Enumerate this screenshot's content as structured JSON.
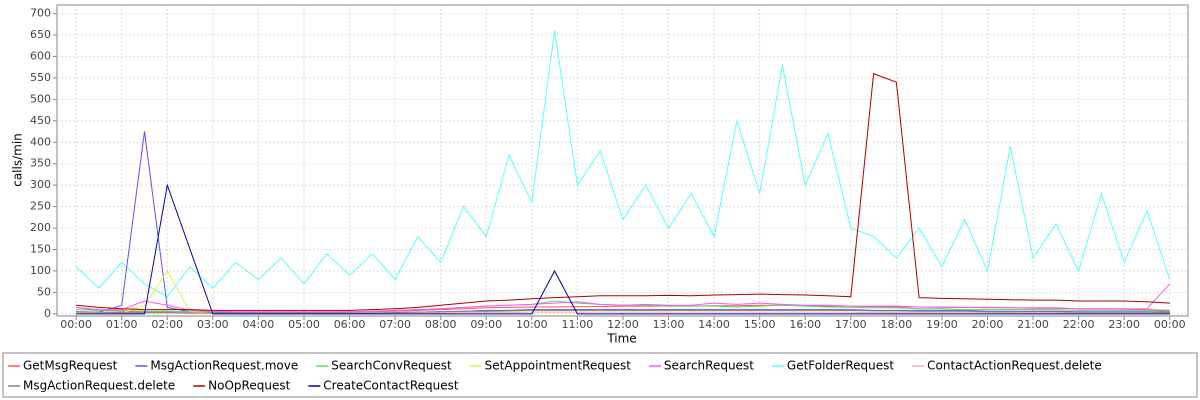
{
  "chart_data": {
    "type": "line",
    "y_label": "calls/min",
    "x_label": "Time",
    "grid": true,
    "legend": "bottom",
    "xlim": [
      -0.42,
      24.4
    ],
    "ylim": [
      -5,
      720
    ],
    "yticks": [
      0,
      50,
      100,
      150,
      200,
      250,
      300,
      350,
      400,
      450,
      500,
      550,
      600,
      650,
      700
    ],
    "xticks": [
      {
        "value": 0,
        "label": "00:00"
      },
      {
        "value": 1,
        "label": "01:00"
      },
      {
        "value": 2,
        "label": "02:00"
      },
      {
        "value": 3,
        "label": "03:00"
      },
      {
        "value": 4,
        "label": "04:00"
      },
      {
        "value": 5,
        "label": "05:00"
      },
      {
        "value": 6,
        "label": "06:00"
      },
      {
        "value": 7,
        "label": "07:00"
      },
      {
        "value": 8,
        "label": "08:00"
      },
      {
        "value": 9,
        "label": "09:00"
      },
      {
        "value": 10,
        "label": "10:00"
      },
      {
        "value": 11,
        "label": "11:00"
      },
      {
        "value": 12,
        "label": "12:00"
      },
      {
        "value": 13,
        "label": "13:00"
      },
      {
        "value": 14,
        "label": "14:00"
      },
      {
        "value": 15,
        "label": "15:00"
      },
      {
        "value": 16,
        "label": "16:00"
      },
      {
        "value": 17,
        "label": "17:00"
      },
      {
        "value": 18,
        "label": "18:00"
      },
      {
        "value": 19,
        "label": "19:00"
      },
      {
        "value": 20,
        "label": "20:00"
      },
      {
        "value": 21,
        "label": "21:00"
      },
      {
        "value": 22,
        "label": "22:00"
      },
      {
        "value": 23,
        "label": "23:00"
      },
      {
        "value": 24,
        "label": "00:00"
      }
    ],
    "x": [
      0,
      0.5,
      1,
      1.5,
      2,
      2.5,
      3,
      3.5,
      4,
      4.5,
      5,
      5.5,
      6,
      6.5,
      7,
      7.5,
      8,
      8.5,
      9,
      9.5,
      10,
      10.5,
      11,
      11.5,
      12,
      12.5,
      13,
      13.5,
      14,
      14.5,
      15,
      15.5,
      16,
      16.5,
      17,
      17.5,
      18,
      18.5,
      19,
      19.5,
      20,
      20.5,
      21,
      21.5,
      22,
      22.5,
      23,
      23.5,
      24
    ],
    "series": [
      {
        "name": "GetMsgRequest",
        "color": "#ff5555",
        "values": [
          15,
          8,
          6,
          5,
          5,
          5,
          4,
          4,
          4,
          4,
          4,
          4,
          5,
          5,
          6,
          8,
          10,
          12,
          14,
          15,
          16,
          16,
          17,
          17,
          18,
          18,
          18,
          18,
          19,
          19,
          20,
          20,
          19,
          18,
          18,
          17,
          16,
          16,
          15,
          15,
          14,
          14,
          13,
          13,
          12,
          12,
          11,
          10,
          8
        ]
      },
      {
        "name": "MsgActionRequest.move",
        "color": "#5555ff",
        "values": [
          5,
          4,
          20,
          425,
          15,
          5,
          3,
          3,
          2,
          2,
          2,
          2,
          2,
          2,
          3,
          4,
          5,
          6,
          8,
          8,
          10,
          10,
          10,
          10,
          10,
          10,
          10,
          10,
          10,
          10,
          10,
          10,
          10,
          10,
          10,
          8,
          8,
          8,
          8,
          8,
          6,
          6,
          6,
          6,
          5,
          5,
          5,
          5,
          4
        ]
      },
      {
        "name": "SearchConvRequest",
        "color": "#55dd55",
        "values": [
          10,
          8,
          8,
          6,
          6,
          5,
          5,
          5,
          5,
          5,
          5,
          5,
          5,
          6,
          8,
          10,
          12,
          15,
          18,
          20,
          22,
          30,
          25,
          22,
          20,
          20,
          18,
          18,
          18,
          16,
          18,
          20,
          18,
          16,
          15,
          14,
          14,
          12,
          12,
          10,
          10,
          10,
          10,
          10,
          8,
          8,
          8,
          8,
          6
        ]
      },
      {
        "name": "SetAppointmentRequest",
        "color": "#eeee44",
        "values": [
          2,
          2,
          2,
          20,
          100,
          5,
          2,
          1,
          1,
          1,
          1,
          1,
          1,
          1,
          2,
          2,
          3,
          3,
          4,
          4,
          4,
          4,
          4,
          4,
          4,
          4,
          4,
          4,
          4,
          4,
          4,
          4,
          4,
          4,
          4,
          3,
          3,
          3,
          3,
          3,
          3,
          2,
          2,
          2,
          2,
          2,
          2,
          2,
          2
        ]
      },
      {
        "name": "SearchRequest",
        "color": "#ff55ff",
        "values": [
          15,
          10,
          10,
          30,
          20,
          8,
          6,
          5,
          5,
          5,
          5,
          5,
          5,
          6,
          8,
          10,
          12,
          15,
          18,
          20,
          22,
          25,
          28,
          22,
          20,
          22,
          20,
          20,
          25,
          22,
          25,
          22,
          20,
          20,
          18,
          18,
          18,
          16,
          16,
          15,
          15,
          14,
          14,
          14,
          12,
          12,
          12,
          12,
          70
        ]
      },
      {
        "name": "GetFolderRequest",
        "color": "#55ffff",
        "values": [
          110,
          60,
          120,
          70,
          40,
          110,
          60,
          120,
          80,
          130,
          70,
          140,
          90,
          140,
          80,
          180,
          120,
          250,
          180,
          370,
          260,
          660,
          300,
          380,
          220,
          300,
          200,
          280,
          180,
          450,
          280,
          580,
          300,
          420,
          200,
          180,
          130,
          200,
          110,
          220,
          100,
          390,
          130,
          210,
          100,
          280,
          120,
          240,
          80
        ]
      },
      {
        "name": "ContactActionRequest.delete",
        "color": "#ffafaf",
        "values": [
          3,
          2,
          2,
          2,
          2,
          1,
          1,
          1,
          1,
          1,
          1,
          1,
          1,
          1,
          2,
          2,
          2,
          3,
          3,
          3,
          4,
          4,
          4,
          4,
          4,
          4,
          4,
          4,
          4,
          4,
          4,
          4,
          4,
          4,
          4,
          3,
          3,
          3,
          3,
          3,
          3,
          3,
          2,
          2,
          2,
          2,
          2,
          2,
          2
        ]
      },
      {
        "name": "MsgActionRequest.delete",
        "color": "#808080",
        "values": [
          5,
          4,
          3,
          3,
          3,
          2,
          2,
          2,
          2,
          2,
          2,
          2,
          2,
          2,
          3,
          4,
          5,
          6,
          6,
          7,
          8,
          8,
          8,
          8,
          8,
          8,
          8,
          8,
          8,
          8,
          8,
          8,
          8,
          8,
          8,
          7,
          7,
          6,
          6,
          6,
          5,
          5,
          5,
          5,
          4,
          4,
          4,
          4,
          3
        ]
      },
      {
        "name": "NoOpRequest",
        "color": "#aa0000",
        "values": [
          20,
          15,
          12,
          10,
          10,
          10,
          8,
          8,
          8,
          8,
          8,
          8,
          8,
          10,
          12,
          15,
          20,
          25,
          30,
          32,
          35,
          38,
          40,
          42,
          42,
          42,
          43,
          42,
          44,
          45,
          46,
          45,
          44,
          42,
          40,
          560,
          540,
          38,
          36,
          35,
          34,
          33,
          32,
          32,
          30,
          30,
          30,
          28,
          25
        ]
      },
      {
        "name": "CreateContactRequest",
        "color": "#0000aa",
        "values": [
          0,
          0,
          0,
          0,
          300,
          150,
          0,
          0,
          0,
          0,
          0,
          0,
          0,
          0,
          0,
          0,
          0,
          0,
          0,
          0,
          0,
          100,
          0,
          0,
          0,
          0,
          0,
          0,
          0,
          0,
          0,
          0,
          0,
          0,
          0,
          0,
          0,
          0,
          0,
          0,
          0,
          0,
          0,
          0,
          0,
          0,
          0,
          0,
          0
        ]
      }
    ]
  }
}
